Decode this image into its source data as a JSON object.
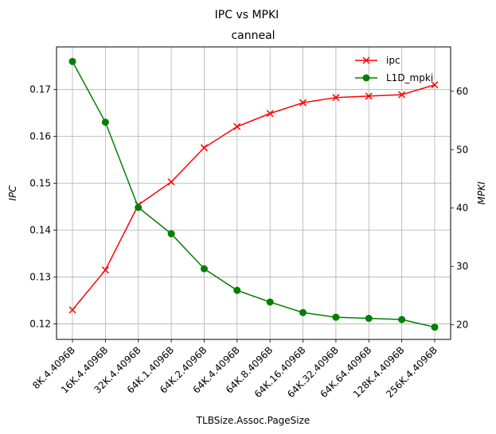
{
  "chart_data": {
    "type": "line",
    "suptitle": "IPC vs MPKI",
    "title": "canneal",
    "xlabel": "TLBSize.Assoc.PageSize",
    "ylabel_left": "IPC",
    "ylabel_right": "MPKI",
    "categories": [
      "8K.4.4096B",
      "16K.4.4096B",
      "32K.4.4096B",
      "64K.1.4096B",
      "64K.2.4096B",
      "64K.4.4096B",
      "64K.8.4096B",
      "64K.16.4096B",
      "64K.32.4096B",
      "64K.64.4096B",
      "128K.4.4096B",
      "256K.4.4096B"
    ],
    "ylim_left": [
      0.1167,
      0.1791
    ],
    "ylim_right": [
      17.5,
      67.6
    ],
    "yticks_left": [
      "0.12",
      "0.13",
      "0.14",
      "0.15",
      "0.16",
      "0.17"
    ],
    "yticks_right": [
      "20",
      "30",
      "40",
      "50",
      "60"
    ],
    "grid": true,
    "legend_placement": "top-right",
    "series": [
      {
        "name": "ipc",
        "axis": "left",
        "color": "#ff0000",
        "marker": "x",
        "values": [
          0.123,
          0.1315,
          0.1454,
          0.1503,
          0.1576,
          0.1621,
          0.1649,
          0.1672,
          0.1683,
          0.1686,
          0.1689,
          0.171
        ]
      },
      {
        "name": "L1D_mpki",
        "axis": "right",
        "color": "#008000",
        "marker": "o",
        "values": [
          65.1,
          54.7,
          40.1,
          35.6,
          29.6,
          25.9,
          23.9,
          22.1,
          21.3,
          21.1,
          20.9,
          19.6
        ]
      }
    ]
  }
}
